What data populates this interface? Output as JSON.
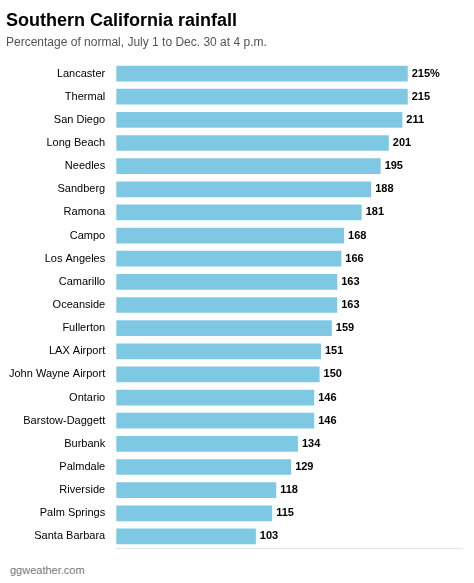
{
  "chart_data": {
    "type": "bar",
    "orientation": "horizontal",
    "title": "Southern California rainfall",
    "subtitle": "Percentage of normal, July 1 to Dec. 30 at 4 p.m.",
    "source": "ggweather.com",
    "categories": [
      "Lancaster",
      "Thermal",
      "San Diego",
      "Long Beach",
      "Needles",
      "Sandberg",
      "Ramona",
      "Campo",
      "Los Angeles",
      "Camarillo",
      "Oceanside",
      "Fullerton",
      "LAX Airport",
      "John Wayne Airport",
      "Ontario",
      "Barstow-Daggett",
      "Burbank",
      "Palmdale",
      "Riverside",
      "Palm Springs",
      "Santa Barbara"
    ],
    "values": [
      215,
      215,
      211,
      201,
      195,
      188,
      181,
      168,
      166,
      163,
      163,
      159,
      151,
      150,
      146,
      146,
      134,
      129,
      118,
      115,
      103
    ],
    "value_labels": [
      "215%",
      "215",
      "211",
      "201",
      "195",
      "188",
      "181",
      "168",
      "166",
      "163",
      "163",
      "159",
      "151",
      "150",
      "146",
      "146",
      "134",
      "129",
      "118",
      "115",
      "103"
    ],
    "data_labels": true,
    "color": "#7ec8e3",
    "xlim": [
      0,
      255
    ],
    "grid": false,
    "tick_labels": "y"
  }
}
